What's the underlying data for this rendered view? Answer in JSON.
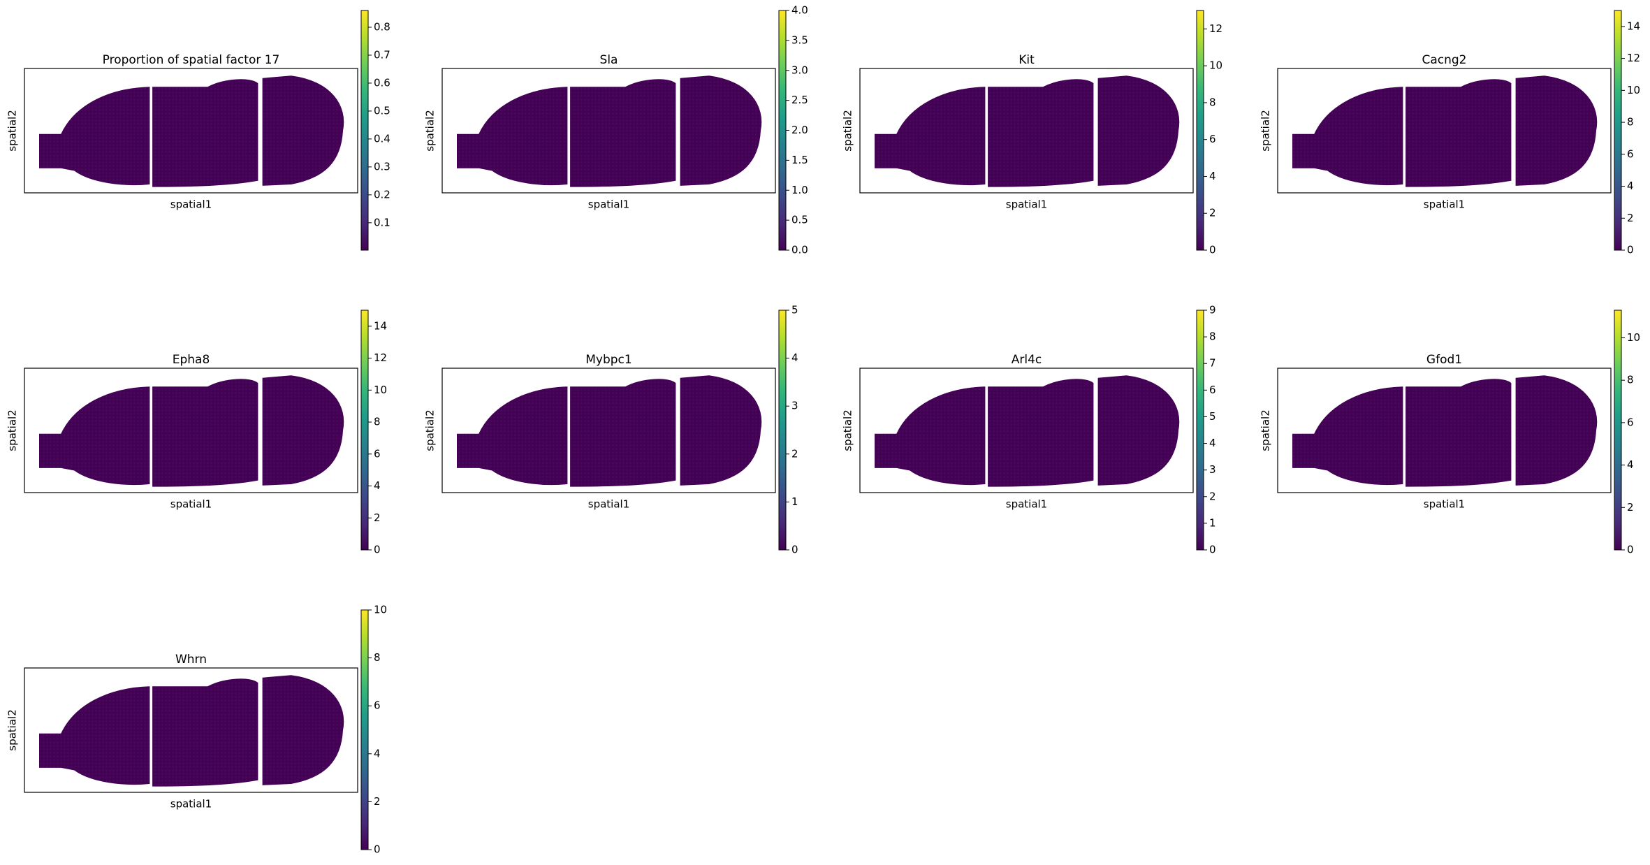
{
  "chart_data": [
    {
      "type": "spatial",
      "title": "Proportion of spatial factor 17",
      "xlabel": "spatial1",
      "ylabel": "spatial2",
      "clim": [
        0.002,
        0.86
      ],
      "cticks": [
        0.1,
        0.2,
        0.3,
        0.4,
        0.5,
        0.6,
        0.7,
        0.8
      ]
    },
    {
      "type": "spatial",
      "title": "Sla",
      "xlabel": "spatial1",
      "ylabel": "spatial2",
      "clim": [
        0,
        4
      ],
      "cticks": [
        {
          "value": 0,
          "label": "0.0"
        },
        0.5,
        {
          "value": 1,
          "label": "1.0"
        },
        1.5,
        {
          "value": 2,
          "label": "2.0"
        },
        2.5,
        {
          "value": 3,
          "label": "3.0"
        },
        3.5,
        {
          "value": 4,
          "label": "4.0"
        }
      ]
    },
    {
      "type": "spatial",
      "title": "Kit",
      "xlabel": "spatial1",
      "ylabel": "spatial2",
      "clim": [
        0,
        13
      ],
      "cticks": [
        0,
        2,
        4,
        6,
        8,
        10,
        12
      ]
    },
    {
      "type": "spatial",
      "title": "Cacng2",
      "xlabel": "spatial1",
      "ylabel": "spatial2",
      "clim": [
        0,
        15
      ],
      "cticks": [
        0,
        2,
        4,
        6,
        8,
        10,
        12,
        14
      ]
    },
    {
      "type": "spatial",
      "title": "Epha8",
      "xlabel": "spatial1",
      "ylabel": "spatial2",
      "clim": [
        0,
        15
      ],
      "cticks": [
        0,
        2,
        4,
        6,
        8,
        10,
        12,
        14
      ]
    },
    {
      "type": "spatial",
      "title": "Mybpc1",
      "xlabel": "spatial1",
      "ylabel": "spatial2",
      "clim": [
        0,
        5
      ],
      "cticks": [
        0,
        1,
        2,
        3,
        4,
        5
      ]
    },
    {
      "type": "spatial",
      "title": "Arl4c",
      "xlabel": "spatial1",
      "ylabel": "spatial2",
      "clim": [
        0,
        9
      ],
      "cticks": [
        0,
        1,
        2,
        3,
        4,
        5,
        6,
        7,
        8,
        9
      ]
    },
    {
      "type": "spatial",
      "title": "Gfod1",
      "xlabel": "spatial1",
      "ylabel": "spatial2",
      "clim": [
        0,
        11.3
      ],
      "cticks": [
        0,
        2,
        4,
        6,
        8,
        10
      ]
    },
    {
      "type": "spatial",
      "title": "Whrn",
      "xlabel": "spatial1",
      "ylabel": "spatial2",
      "clim": [
        0,
        10
      ],
      "cticks": [
        0,
        2,
        4,
        6,
        8,
        10
      ]
    }
  ]
}
